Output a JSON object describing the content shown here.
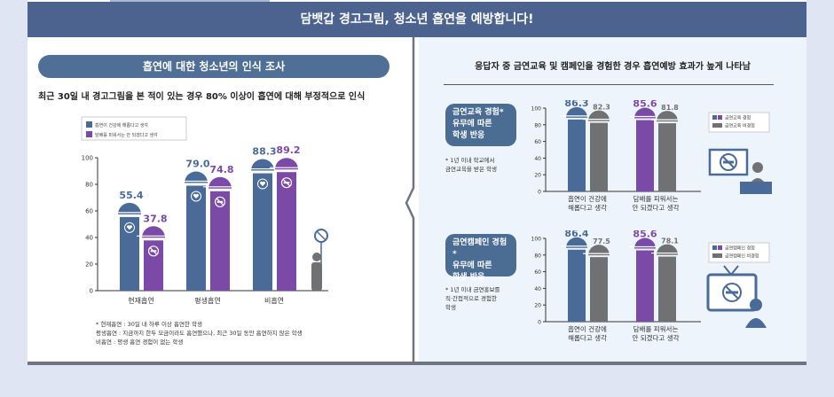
{
  "header": {
    "title": "담뱃갑 경고그림, 청소년 흡연을 예방합니다!"
  },
  "left": {
    "pill": "흡연에 대한 청소년의 인식 조사",
    "subtitle": "최근 30일 내 경고그림을 본 적이 있는 경우 80% 이상이 흡연에 대해 부정적으로 인식",
    "footnote": "* 현재흡연 : 30일 내 하루 이상 흡연한 학생\n평생흡연 : 지금까지 한두 모금이라도 흡연했으나, 최근 30일 동안 흡연하지 않은 학생\n비흡연 : 평생 흡연 경험이 없는 학생"
  },
  "right": {
    "title": "응답자 중 금연교육 및 캠페인을 경험한 경우 흡연예방 효과가 높게 나타남",
    "box1": {
      "line1": "금연교육 경험*",
      "line2": "유무에 따른",
      "line3": "학생 반응"
    },
    "note1": "* 1년 이내 학교에서\n금연교육을 받은 학생",
    "box2": {
      "line1": "금연캠페인 경험*",
      "line2": "유무에 따른",
      "line3": "학생 반응"
    },
    "note2": "* 1년 이내 금연홍보를\n직·간접적으로 경험한\n학생"
  },
  "colors": {
    "blue": "#4a6b98",
    "purple": "#7b4aa6",
    "gray": "#6f7173",
    "banner": "#4c638f"
  },
  "chart_data": [
    {
      "type": "bar",
      "categories": [
        "현재흡연",
        "평생흡연",
        "비흡연"
      ],
      "series": [
        {
          "name": "흡연이 건강에 해롭다고 생각",
          "values": [
            55.4,
            79.0,
            88.3
          ],
          "labels": [
            "55.4",
            "79.0",
            "88.3"
          ],
          "color": "#4a6b98"
        },
        {
          "name": "담배를 피워서는 안 되겠다고 생각",
          "values": [
            37.8,
            74.8,
            89.2
          ],
          "labels": [
            "37.8",
            "74.8",
            "89.2"
          ],
          "color": "#7b4aa6"
        }
      ],
      "ylim": [
        0,
        100
      ],
      "yticks": [
        0,
        20,
        40,
        60,
        80,
        100
      ],
      "legend": "top-left"
    },
    {
      "type": "bar",
      "categories": [
        "흡연이 건강에\n해롭다고 생각",
        "담배를 피워서는\n안 되겠다고 생각"
      ],
      "series": [
        {
          "name": "금연교육 경험",
          "values": [
            86.3,
            85.6
          ],
          "labels": [
            "86.3",
            "85.6"
          ]
        },
        {
          "name": "금연교육 비경험",
          "values": [
            82.3,
            81.8
          ],
          "labels": [
            "82.3",
            "81.8"
          ],
          "color": "#6f7173"
        }
      ],
      "bar_colors": [
        "#4a6b98",
        "#7b4aa6"
      ],
      "ylim": [
        0,
        100
      ],
      "yticks": [
        0,
        20,
        40,
        60,
        80,
        100
      ],
      "legend": "top-right"
    },
    {
      "type": "bar",
      "categories": [
        "흡연이 건강에\n해롭다고 생각",
        "담배를 피워서는\n안 되겠다고 생각"
      ],
      "series": [
        {
          "name": "금연캠페인 경험",
          "values": [
            86.4,
            85.6
          ],
          "labels": [
            "86.4",
            "85.6"
          ]
        },
        {
          "name": "금연캠페인 비경험",
          "values": [
            77.5,
            78.1
          ],
          "labels": [
            "77.5",
            "78.1"
          ],
          "color": "#6f7173"
        }
      ],
      "bar_colors": [
        "#4a6b98",
        "#7b4aa6"
      ],
      "ylim": [
        0,
        100
      ],
      "yticks": [
        0,
        20,
        40,
        60,
        80,
        100
      ],
      "legend": "top-right"
    }
  ]
}
